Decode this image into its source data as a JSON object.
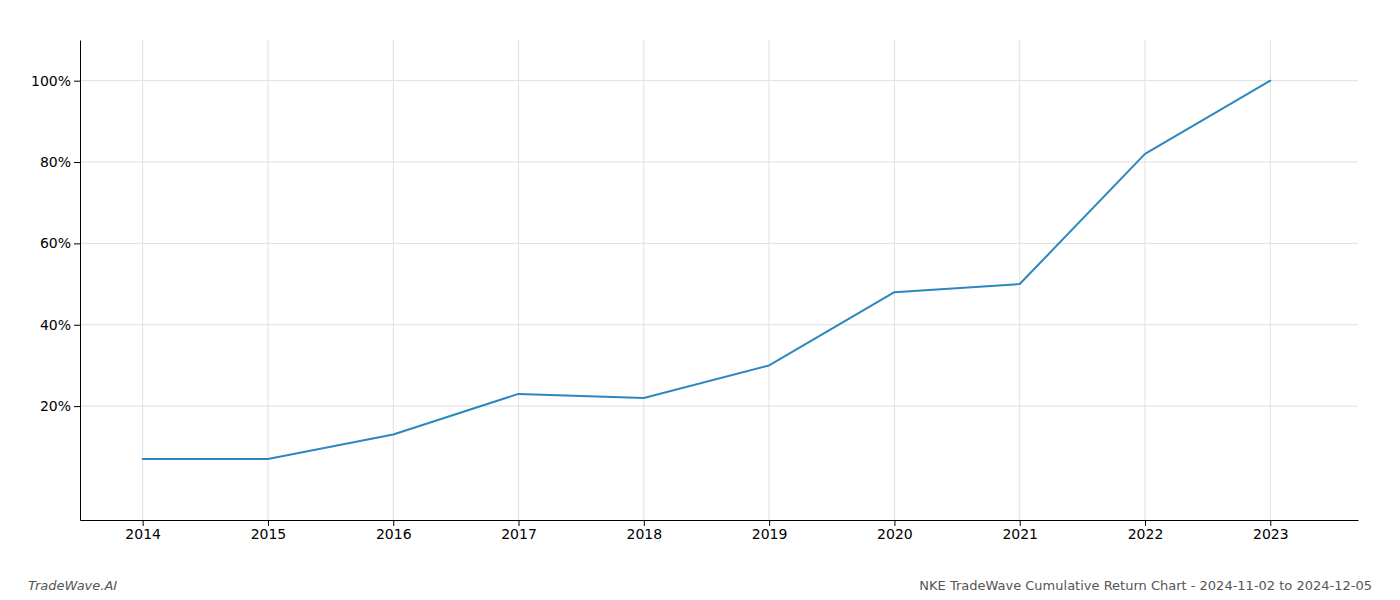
{
  "chart_data": {
    "type": "line",
    "title": "NKE TradeWave Cumulative Return Chart - 2024-11-02 to 2024-12-05",
    "annotations": [
      "TradeWave.AI"
    ],
    "x": [
      2014,
      2015,
      2016,
      2017,
      2018,
      2019,
      2020,
      2021,
      2022,
      2023
    ],
    "values": [
      7,
      7,
      13,
      23,
      22,
      30,
      48,
      50,
      82,
      100
    ],
    "color": "#2e86c1",
    "xlim": [
      2013.5,
      2023.7
    ],
    "xticks": [
      2014,
      2015,
      2016,
      2017,
      2018,
      2019,
      2020,
      2021,
      2022,
      2023
    ],
    "ylim": [
      -8,
      110
    ],
    "yticks": [
      {
        "value": 20,
        "label": "20%"
      },
      {
        "value": 40,
        "label": "40%"
      },
      {
        "value": 60,
        "label": "60%"
      },
      {
        "value": 80,
        "label": "80%"
      },
      {
        "value": 100,
        "label": "100%"
      }
    ],
    "grid": true
  }
}
